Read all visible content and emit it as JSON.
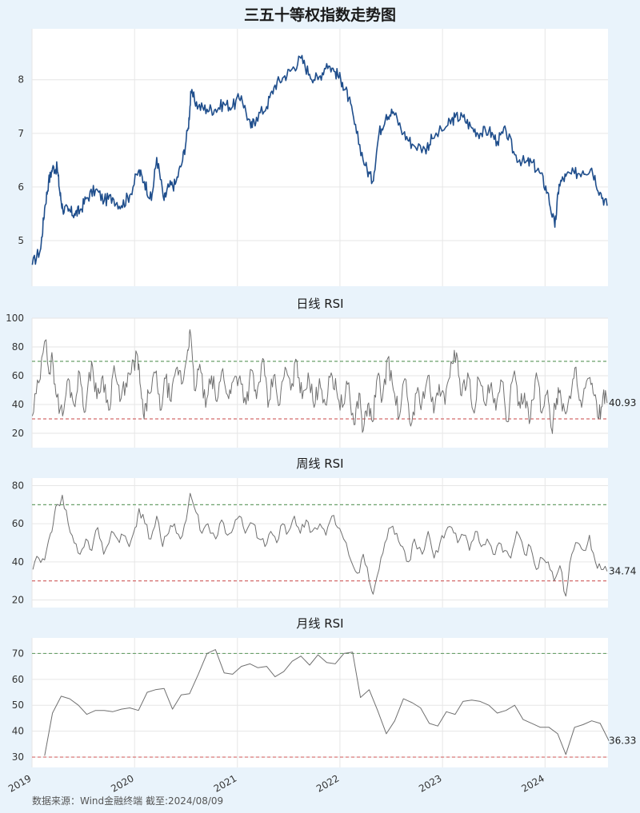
{
  "header": {
    "title": "三五十等权指数走势图"
  },
  "panels": {
    "daily_title": "日线 RSI",
    "weekly_title": "周线 RSI",
    "monthly_title": "月线 RSI"
  },
  "footer": {
    "source": "数据来源：Wind金融终端 截至:2024/08/09"
  },
  "colors": {
    "background": "#e9f3fb",
    "plot_bg": "#ffffff",
    "price_line": "#1f4e8c",
    "rsi_line": "#707070",
    "overbought_line": "#6aa06a",
    "oversold_line": "#d46a6a",
    "grid": "#e6e6e6"
  },
  "chart_data": [
    {
      "type": "line",
      "panel": "price",
      "title": "三五十等权指数走势图",
      "ylim": [
        4.15,
        8.95
      ],
      "yticks": [
        5,
        6,
        7,
        8
      ],
      "x_ticks": [
        "2019",
        "2020",
        "2021",
        "2022",
        "2023",
        "2024"
      ],
      "grid": true,
      "series": [
        {
          "x": [
            "2019-01-02",
            "2019-02-01",
            "2019-02-15",
            "2019-03-01",
            "2019-03-15",
            "2019-04-01",
            "2019-04-10",
            "2019-04-20",
            "2019-05-10",
            "2019-06-01",
            "2019-06-20",
            "2019-07-15",
            "2019-08-15",
            "2019-09-15",
            "2019-10-15",
            "2019-11-15",
            "2019-12-15",
            "2020-01-15",
            "2020-02-05",
            "2020-03-01",
            "2020-03-20",
            "2020-04-15",
            "2020-05-01",
            "2020-05-25",
            "2020-06-20",
            "2020-07-10",
            "2020-07-20",
            "2020-08-15",
            "2020-09-15",
            "2020-10-15",
            "2020-11-15",
            "2020-12-15",
            "2021-01-15",
            "2021-02-18",
            "2021-03-10",
            "2021-04-15",
            "2021-05-15",
            "2021-06-15",
            "2021-07-15",
            "2021-08-15",
            "2021-09-15",
            "2021-10-15",
            "2021-11-15",
            "2021-12-15",
            "2022-01-10",
            "2022-02-01",
            "2022-03-01",
            "2022-04-01",
            "2022-04-27",
            "2022-05-20",
            "2022-06-15",
            "2022-07-10",
            "2022-08-15",
            "2022-09-15",
            "2022-10-31",
            "2022-11-25",
            "2023-01-20",
            "2023-02-15",
            "2023-03-15",
            "2023-04-15",
            "2023-05-15",
            "2023-06-15",
            "2023-07-15",
            "2023-08-15",
            "2023-09-15",
            "2023-10-20",
            "2023-11-15",
            "2023-12-15",
            "2024-01-10",
            "2024-02-05",
            "2024-02-20",
            "2024-03-15",
            "2024-04-15",
            "2024-05-15",
            "2024-06-15",
            "2024-07-15",
            "2024-08-09"
          ],
          "y": [
            4.55,
            4.85,
            5.6,
            6.1,
            6.35,
            6.35,
            5.9,
            5.6,
            5.55,
            5.5,
            5.55,
            5.8,
            5.95,
            5.75,
            5.8,
            5.65,
            5.85,
            6.3,
            6.1,
            5.75,
            6.55,
            5.75,
            6.0,
            6.05,
            6.5,
            7.1,
            7.75,
            7.5,
            7.45,
            7.45,
            7.55,
            7.5,
            7.7,
            7.1,
            7.3,
            7.5,
            7.9,
            8.05,
            8.2,
            8.4,
            8.1,
            8.0,
            8.3,
            8.15,
            7.95,
            7.65,
            7.0,
            6.4,
            6.1,
            7.0,
            7.35,
            7.4,
            7.0,
            6.8,
            6.7,
            6.9,
            7.15,
            7.3,
            7.3,
            7.1,
            7.0,
            7.05,
            6.85,
            7.05,
            6.6,
            6.45,
            6.45,
            6.25,
            5.9,
            5.25,
            6.05,
            6.2,
            6.25,
            6.3,
            6.35,
            5.9,
            5.65
          ]
        }
      ]
    },
    {
      "type": "line",
      "panel": "daily_rsi",
      "title": "日线 RSI",
      "ylim": [
        10,
        100
      ],
      "yticks": [
        20,
        40,
        60,
        80,
        100
      ],
      "x_ticks": [
        "2019",
        "2020",
        "2021",
        "2022",
        "2023",
        "2024"
      ],
      "reference_lines": [
        70,
        30
      ],
      "last_value_label": "40.93",
      "series": [
        {
          "x": [
            "2019-01-02",
            "2019-01-25",
            "2019-02-20",
            "2019-03-05",
            "2019-03-15",
            "2019-03-30",
            "2019-04-20",
            "2019-05-10",
            "2019-05-30",
            "2019-06-20",
            "2019-07-10",
            "2019-08-01",
            "2019-08-20",
            "2019-09-10",
            "2019-10-01",
            "2019-10-20",
            "2019-11-10",
            "2019-12-01",
            "2019-12-20",
            "2020-01-10",
            "2020-01-20",
            "2020-02-04",
            "2020-02-20",
            "2020-03-15",
            "2020-04-01",
            "2020-04-20",
            "2020-05-10",
            "2020-06-01",
            "2020-06-20",
            "2020-07-08",
            "2020-07-16",
            "2020-08-01",
            "2020-08-20",
            "2020-09-10",
            "2020-10-01",
            "2020-10-20",
            "2020-11-10",
            "2020-12-01",
            "2020-12-20",
            "2021-01-10",
            "2021-02-01",
            "2021-02-20",
            "2021-03-10",
            "2021-04-01",
            "2021-04-20",
            "2021-05-10",
            "2021-06-01",
            "2021-06-20",
            "2021-07-10",
            "2021-08-01",
            "2021-08-20",
            "2021-09-10",
            "2021-10-01",
            "2021-10-20",
            "2021-11-10",
            "2021-12-01",
            "2021-12-20",
            "2022-01-10",
            "2022-01-28",
            "2022-02-20",
            "2022-03-10",
            "2022-03-25",
            "2022-04-10",
            "2022-04-27",
            "2022-05-15",
            "2022-06-01",
            "2022-06-20",
            "2022-07-10",
            "2022-08-01",
            "2022-08-20",
            "2022-09-10",
            "2022-10-01",
            "2022-10-20",
            "2022-11-10",
            "2022-12-01",
            "2022-12-20",
            "2023-01-10",
            "2023-01-31",
            "2023-02-20",
            "2023-03-10",
            "2023-04-01",
            "2023-04-20",
            "2023-05-10",
            "2023-06-01",
            "2023-06-20",
            "2023-07-10",
            "2023-08-01",
            "2023-08-20",
            "2023-09-10",
            "2023-10-01",
            "2023-10-20",
            "2023-11-10",
            "2023-12-01",
            "2023-12-20",
            "2024-01-10",
            "2024-01-25",
            "2024-02-05",
            "2024-02-20",
            "2024-03-10",
            "2024-04-01",
            "2024-04-20",
            "2024-05-10",
            "2024-06-01",
            "2024-06-20",
            "2024-07-10",
            "2024-07-25",
            "2024-08-09"
          ],
          "y": [
            32,
            55,
            85,
            62,
            72,
            45,
            32,
            58,
            40,
            62,
            35,
            70,
            44,
            60,
            36,
            67,
            42,
            55,
            62,
            75,
            55,
            30,
            48,
            62,
            36,
            58,
            42,
            66,
            55,
            78,
            92,
            50,
            68,
            38,
            60,
            42,
            65,
            44,
            58,
            60,
            40,
            64,
            44,
            72,
            38,
            60,
            40,
            66,
            50,
            70,
            44,
            62,
            38,
            58,
            40,
            62,
            50,
            38,
            54,
            26,
            48,
            22,
            40,
            28,
            60,
            44,
            72,
            50,
            32,
            58,
            25,
            48,
            42,
            60,
            34,
            54,
            40,
            70,
            76,
            46,
            62,
            36,
            58,
            40,
            52,
            36,
            56,
            28,
            60,
            42,
            48,
            30,
            62,
            34,
            50,
            22,
            40,
            48,
            36,
            44,
            66,
            38,
            58,
            48,
            30,
            46,
            41
          ]
        }
      ]
    },
    {
      "type": "line",
      "panel": "weekly_rsi",
      "title": "周线 RSI",
      "ylim": [
        16,
        84
      ],
      "yticks": [
        20,
        40,
        60,
        80
      ],
      "x_ticks": [
        "2019",
        "2020",
        "2021",
        "2022",
        "2023",
        "2024"
      ],
      "reference_lines": [
        70,
        30
      ],
      "last_value_label": "34.74",
      "series": [
        {
          "x": [
            "2019-01-04",
            "2019-01-25",
            "2019-02-15",
            "2019-03-08",
            "2019-03-22",
            "2019-04-05",
            "2019-04-19",
            "2019-05-10",
            "2019-05-31",
            "2019-06-21",
            "2019-07-12",
            "2019-08-02",
            "2019-08-23",
            "2019-09-13",
            "2019-10-11",
            "2019-11-01",
            "2019-11-22",
            "2019-12-13",
            "2020-01-03",
            "2020-01-17",
            "2020-02-07",
            "2020-02-28",
            "2020-03-20",
            "2020-04-10",
            "2020-05-01",
            "2020-05-22",
            "2020-06-12",
            "2020-07-03",
            "2020-07-17",
            "2020-08-07",
            "2020-08-28",
            "2020-09-18",
            "2020-10-16",
            "2020-11-06",
            "2020-11-27",
            "2020-12-18",
            "2021-01-08",
            "2021-01-29",
            "2021-02-26",
            "2021-03-19",
            "2021-04-09",
            "2021-04-30",
            "2021-05-21",
            "2021-06-11",
            "2021-07-02",
            "2021-07-23",
            "2021-08-13",
            "2021-09-03",
            "2021-09-24",
            "2021-10-22",
            "2021-11-12",
            "2021-12-03",
            "2021-12-24",
            "2022-01-14",
            "2022-02-11",
            "2022-03-04",
            "2022-03-25",
            "2022-04-15",
            "2022-04-29",
            "2022-05-20",
            "2022-06-10",
            "2022-07-01",
            "2022-07-22",
            "2022-08-12",
            "2022-09-02",
            "2022-09-23",
            "2022-10-21",
            "2022-11-11",
            "2022-12-02",
            "2022-12-23",
            "2023-01-13",
            "2023-02-03",
            "2023-02-24",
            "2023-03-17",
            "2023-04-07",
            "2023-04-28",
            "2023-05-19",
            "2023-06-09",
            "2023-06-30",
            "2023-07-21",
            "2023-08-11",
            "2023-09-01",
            "2023-09-22",
            "2023-10-20",
            "2023-11-10",
            "2023-12-01",
            "2023-12-22",
            "2024-01-12",
            "2024-02-02",
            "2024-02-23",
            "2024-03-15",
            "2024-04-05",
            "2024-04-26",
            "2024-05-17",
            "2024-06-07",
            "2024-06-28",
            "2024-07-19",
            "2024-08-09"
          ],
          "y": [
            36,
            42,
            41,
            55,
            65,
            70,
            75,
            60,
            50,
            44,
            52,
            46,
            58,
            44,
            56,
            52,
            54,
            48,
            58,
            68,
            60,
            52,
            64,
            48,
            55,
            60,
            52,
            62,
            76,
            66,
            55,
            60,
            52,
            62,
            54,
            58,
            64,
            55,
            60,
            52,
            48,
            56,
            50,
            60,
            56,
            64,
            55,
            62,
            56,
            60,
            54,
            64,
            58,
            52,
            40,
            34,
            44,
            30,
            23,
            36,
            50,
            58,
            55,
            48,
            40,
            52,
            44,
            56,
            42,
            50,
            56,
            58,
            50,
            54,
            46,
            56,
            48,
            52,
            44,
            50,
            46,
            42,
            56,
            44,
            48,
            36,
            42,
            40,
            30,
            38,
            22,
            44,
            50,
            46,
            54,
            40,
            36,
            35
          ]
        }
      ]
    },
    {
      "type": "line",
      "panel": "monthly_rsi",
      "title": "月线 RSI",
      "ylim": [
        26,
        76
      ],
      "yticks": [
        30,
        40,
        50,
        60,
        70
      ],
      "x_ticks": [
        "2019",
        "2020",
        "2021",
        "2022",
        "2023",
        "2024"
      ],
      "reference_lines": [
        70,
        30
      ],
      "last_value_label": "36.33",
      "series": [
        {
          "x": [
            "2019-02",
            "2019-03",
            "2019-04",
            "2019-05",
            "2019-06",
            "2019-07",
            "2019-08",
            "2019-09",
            "2019-10",
            "2019-11",
            "2019-12",
            "2020-01",
            "2020-02",
            "2020-03",
            "2020-04",
            "2020-05",
            "2020-06",
            "2020-07",
            "2020-08",
            "2020-09",
            "2020-10",
            "2020-11",
            "2020-12",
            "2021-01",
            "2021-02",
            "2021-03",
            "2021-04",
            "2021-05",
            "2021-06",
            "2021-07",
            "2021-08",
            "2021-09",
            "2021-10",
            "2021-11",
            "2021-12",
            "2022-01",
            "2022-02",
            "2022-03",
            "2022-04",
            "2022-05",
            "2022-06",
            "2022-07",
            "2022-08",
            "2022-09",
            "2022-10",
            "2022-11",
            "2022-12",
            "2023-01",
            "2023-02",
            "2023-03",
            "2023-04",
            "2023-05",
            "2023-06",
            "2023-07",
            "2023-08",
            "2023-09",
            "2023-10",
            "2023-11",
            "2023-12",
            "2024-01",
            "2024-02",
            "2024-03",
            "2024-04",
            "2024-05",
            "2024-06",
            "2024-07",
            "2024-08"
          ],
          "y": [
            30.5,
            47,
            53.5,
            52.5,
            50,
            46.5,
            48,
            48,
            47.5,
            48.5,
            49,
            48,
            55,
            56,
            56.5,
            48.5,
            54,
            54.5,
            62,
            70,
            71.5,
            62.5,
            62,
            65,
            66,
            64.5,
            65,
            61,
            63,
            67,
            69,
            65.5,
            69.5,
            66.5,
            66,
            70,
            70.5,
            53,
            56,
            48,
            39,
            44,
            52.5,
            51,
            49,
            43,
            42,
            47.5,
            46.5,
            51.5,
            52,
            51.5,
            50,
            47,
            48,
            50,
            44.5,
            43,
            41.5,
            41.5,
            39,
            31,
            41.5,
            42.5,
            44,
            43,
            36.3
          ]
        }
      ]
    }
  ]
}
